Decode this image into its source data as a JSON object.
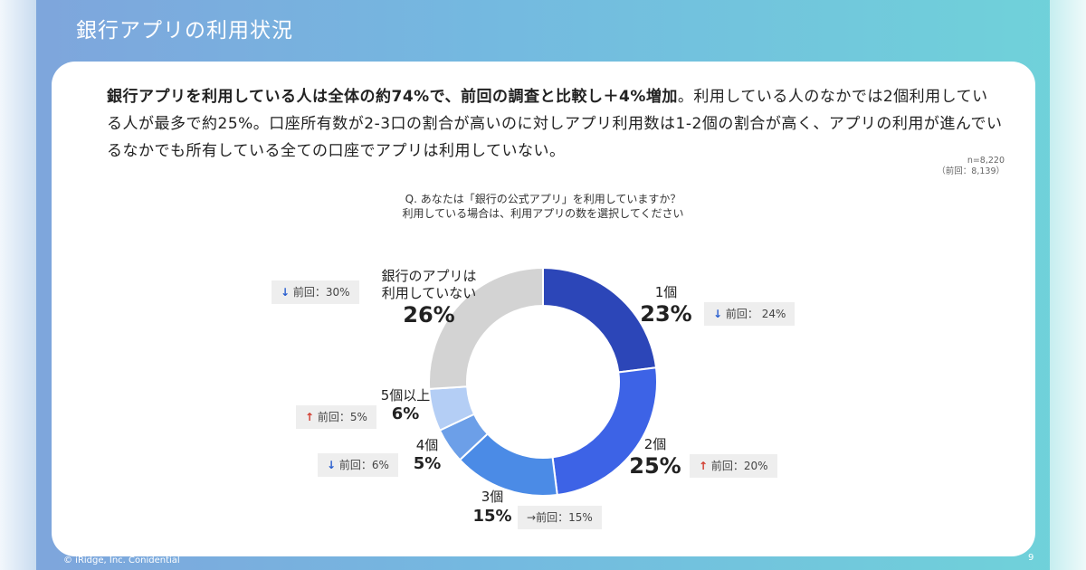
{
  "slide": {
    "title": "銀行アプリの利用状況",
    "copyright": "© iRidge, Inc. Conidential",
    "page_number": "9"
  },
  "summary": {
    "bold": "銀行アプリを利用している人は全体の約74%で、前回の調査と比較し＋4%増加",
    "normal": "。利用している人のなかでは2個利用している人が最多で約25%。口座所有数が2-3口の割合が高いのに対しアプリ利用数は1-2個の割合が高く、アプリの利用が進んでいるなかでも所有している全ての口座でアプリは利用していない。"
  },
  "sample": {
    "n": "n=8,220",
    "prev": "（前回：8,139）"
  },
  "question": {
    "line1": "Q. あなたは「銀行の公式アプリ」を利用していますか？",
    "line2": "利用している場合は、利用アプリの数を選択してください"
  },
  "chart_data": {
    "type": "pie",
    "style": "donut",
    "categories": [
      "1個",
      "2個",
      "3個",
      "4個",
      "5個以上",
      "銀行のアプリは利用していない"
    ],
    "values": [
      23,
      25,
      15,
      5,
      6,
      26
    ],
    "colors": [
      "#2c46b8",
      "#3d63e6",
      "#4b8be6",
      "#6c9fe8",
      "#b4cef5",
      "#d3d3d3"
    ],
    "labels": [
      {
        "name": "1個",
        "pct": "23%"
      },
      {
        "name": "2個",
        "pct": "25%"
      },
      {
        "name": "3個",
        "pct": "15%"
      },
      {
        "name": "4個",
        "pct": "5%"
      },
      {
        "name": "5個以上",
        "pct": "6%"
      },
      {
        "name_line1": "銀行のアプリは",
        "name_line2": "利用していない",
        "pct": "26%"
      }
    ],
    "previous": [
      {
        "arrow": "↓",
        "direction": "down",
        "text": "前回： 24%"
      },
      {
        "arrow": "↑",
        "direction": "up",
        "text": "前回：20%"
      },
      {
        "arrow": "→",
        "direction": "flat",
        "text": "前回：15%"
      },
      {
        "arrow": "↓",
        "direction": "down",
        "text": "前回：6%"
      },
      {
        "arrow": "↑",
        "direction": "up",
        "text": "前回：5%"
      },
      {
        "arrow": "↓",
        "direction": "down",
        "text": "前回：30%"
      }
    ]
  }
}
